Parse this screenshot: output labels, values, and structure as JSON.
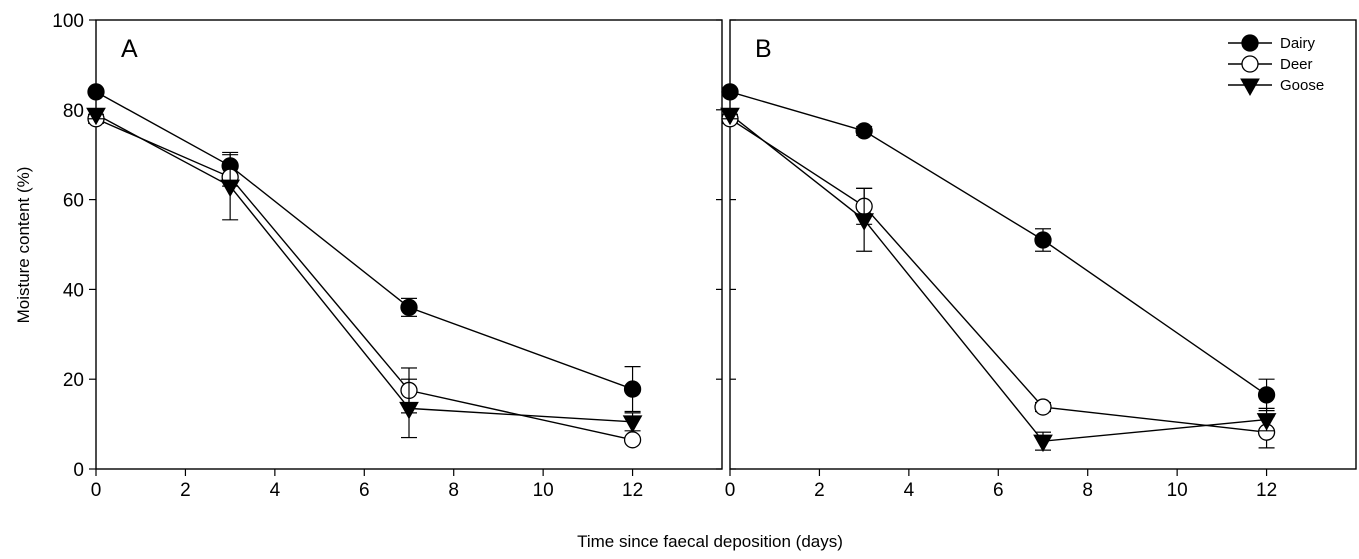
{
  "chart_data": {
    "type": "line",
    "xlabel": "Time since faecal deposition (days)",
    "ylabel": "Moisture content (%)",
    "xlim": [
      0,
      14
    ],
    "ylim": [
      0,
      100
    ],
    "x_ticks": [
      0,
      2,
      4,
      6,
      8,
      10,
      12
    ],
    "y_ticks": [
      0,
      20,
      40,
      60,
      80,
      100
    ],
    "legend_position": "top-right of panel B",
    "legend": [
      "Dairy",
      "Deer",
      "Goose"
    ],
    "panels": [
      {
        "label": "A",
        "series": [
          {
            "name": "Dairy",
            "marker": "filled-circle",
            "x": [
              0,
              3,
              7,
              12
            ],
            "y": [
              84,
              67.5,
              36,
              17.8
            ],
            "err": [
              0,
              2.5,
              2,
              5
            ]
          },
          {
            "name": "Deer",
            "marker": "open-circle",
            "x": [
              0,
              3,
              7,
              12
            ],
            "y": [
              78,
              65,
              17.5,
              6.5
            ],
            "err": [
              1,
              2,
              5,
              0.5
            ]
          },
          {
            "name": "Goose",
            "marker": "filled-triangle-down",
            "x": [
              0,
              3,
              7,
              12
            ],
            "y": [
              79,
              63,
              13.5,
              10.5
            ],
            "err": [
              1,
              7.5,
              6.5,
              2
            ]
          }
        ]
      },
      {
        "label": "B",
        "series": [
          {
            "name": "Dairy",
            "marker": "filled-circle",
            "x": [
              0,
              3,
              7,
              12
            ],
            "y": [
              84,
              75.3,
              51,
              16.5
            ],
            "err": [
              0,
              1,
              2.5,
              3.5
            ]
          },
          {
            "name": "Deer",
            "marker": "open-circle",
            "x": [
              0,
              3,
              7,
              12
            ],
            "y": [
              78,
              58.5,
              13.8,
              8.2
            ],
            "err": [
              1,
              4,
              1,
              3.5
            ]
          },
          {
            "name": "Goose",
            "marker": "filled-triangle-down",
            "x": [
              0,
              3,
              7,
              12
            ],
            "y": [
              79,
              55.5,
              6.2,
              11
            ],
            "err": [
              1,
              7,
              2,
              2.5
            ]
          }
        ]
      }
    ]
  }
}
